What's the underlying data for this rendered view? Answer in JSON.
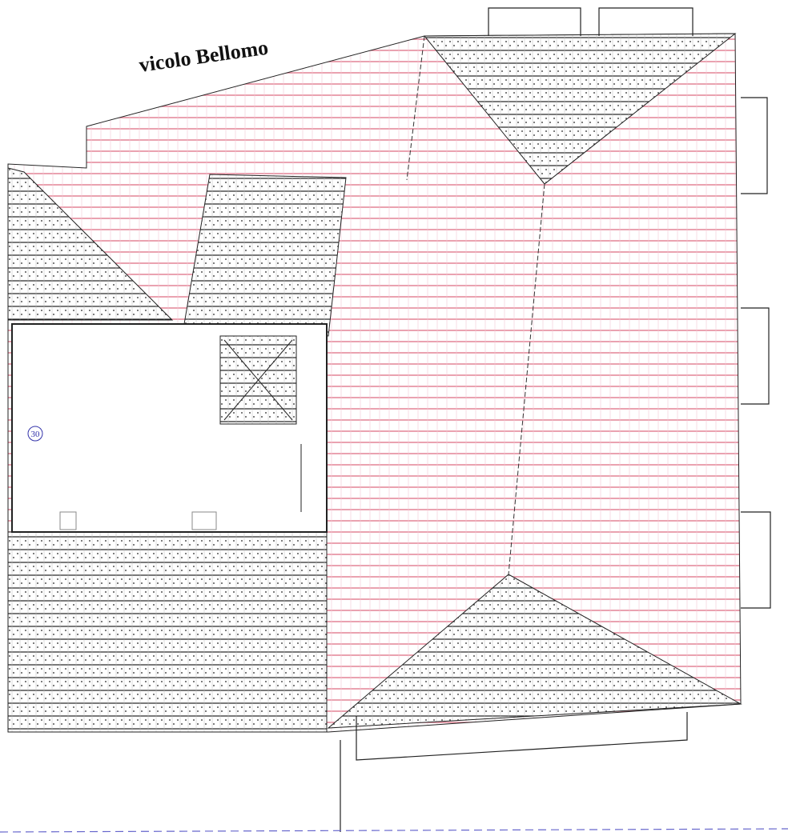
{
  "street_label": "vicolo Bellomo",
  "marker_label": "30"
}
